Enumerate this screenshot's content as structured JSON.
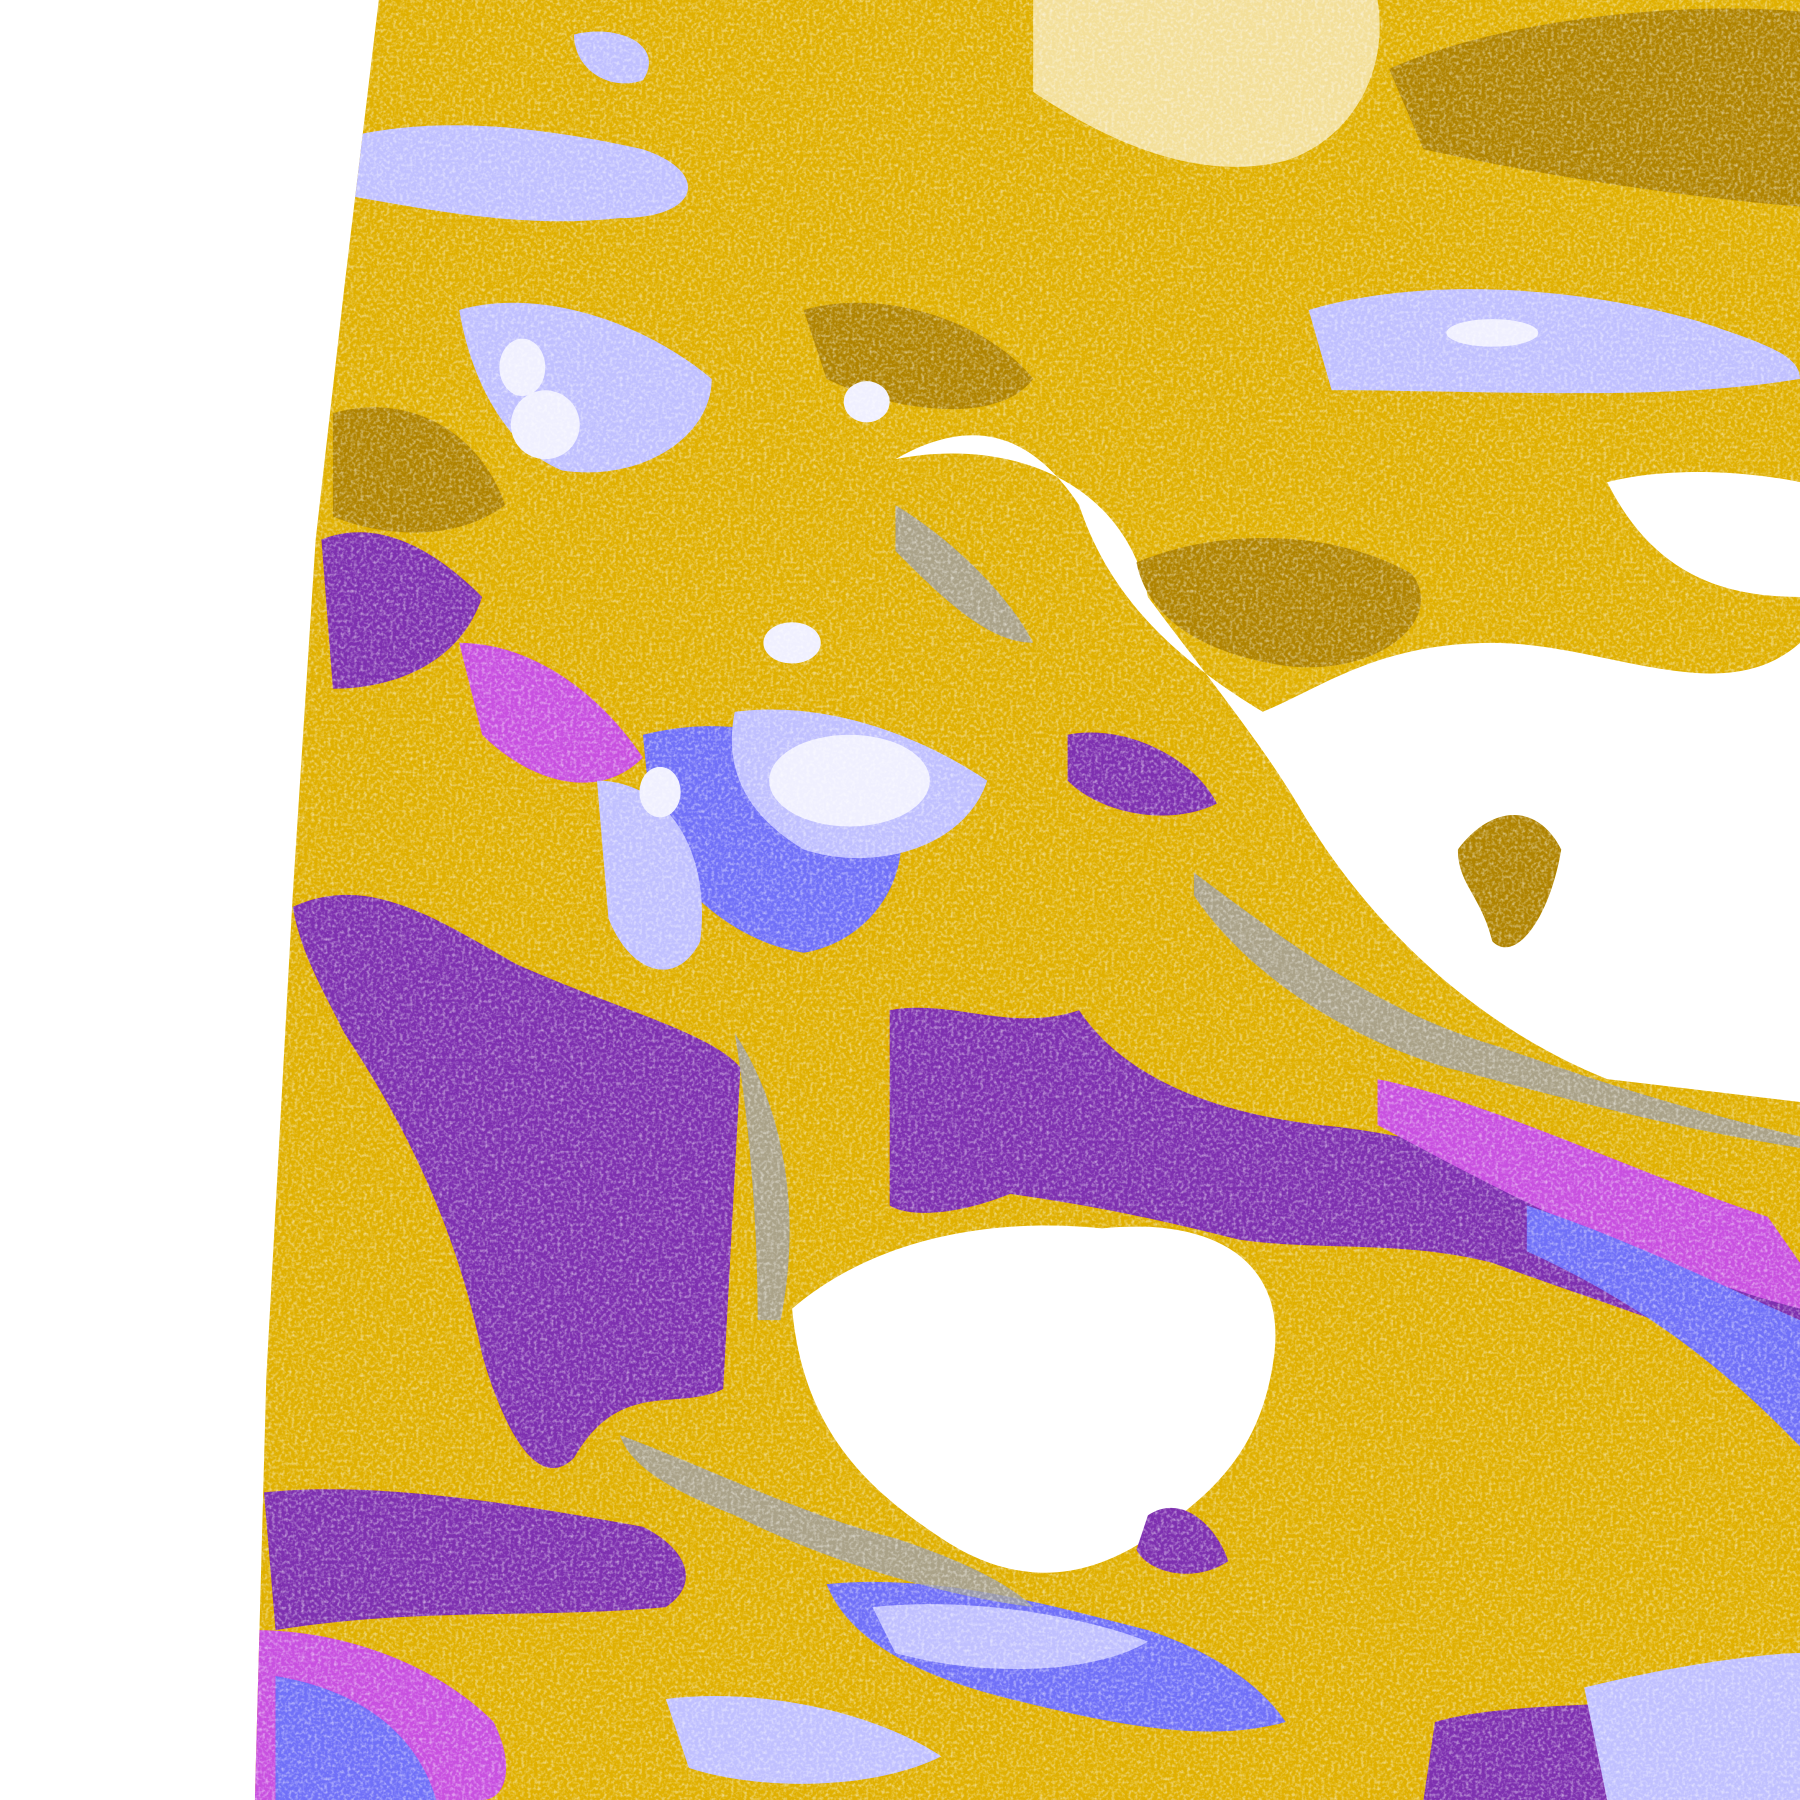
{
  "map": {
    "background": "#ffffff",
    "palette": {
      "clear": "#ffffff",
      "dark_gold": "#b08400",
      "gold": "#e0b000",
      "purple": "#7e30b0",
      "magenta": "#c850e0",
      "blue": "#7070f8",
      "lavender": "#c0c0ff",
      "pale": "#f0f0ff",
      "grey": "#a0a0a0"
    }
  }
}
